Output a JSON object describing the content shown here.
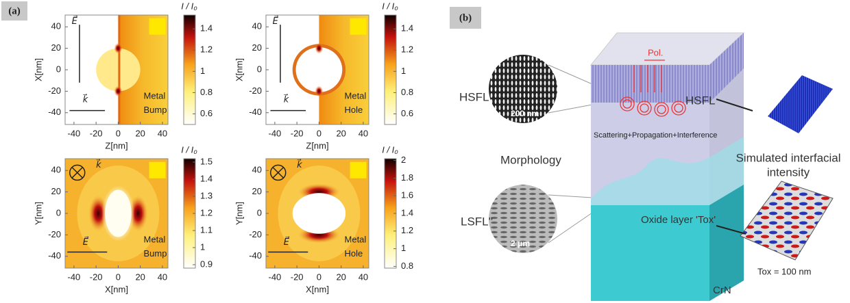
{
  "panel_a": {
    "label": "(a)",
    "plots": [
      {
        "xlabel": "Z[nm]",
        "ylabel": "X[nm]",
        "xlim": [
          -48,
          45
        ],
        "ylim": [
          -51,
          51
        ],
        "xticks": [
          -40,
          -20,
          0,
          20,
          40
        ],
        "yticks": [
          -40,
          -20,
          0,
          20,
          40
        ],
        "colorbar_title": "I / I₀",
        "clim": [
          0.5,
          1.53
        ],
        "cbar_ticks": [
          0.6,
          0.8,
          1,
          1.2,
          1.4
        ],
        "field_label": "E⃗",
        "wave_label": "k⃗",
        "material": "Metal",
        "structure": "Bump"
      },
      {
        "xlabel": "Z[nm]",
        "ylabel": "X[nm]",
        "xlim": [
          -48,
          45
        ],
        "ylim": [
          -51,
          51
        ],
        "xticks": [
          -40,
          -20,
          0,
          20,
          40
        ],
        "yticks": [
          -40,
          -20,
          0,
          20,
          40
        ],
        "colorbar_title": "I / I₀",
        "clim": [
          0.5,
          1.53
        ],
        "cbar_ticks": [
          0.6,
          0.8,
          1,
          1.2,
          1.4
        ],
        "field_label": "E⃗",
        "wave_label": "k⃗",
        "material": "Metal",
        "structure": "Hole"
      },
      {
        "xlabel": "X[nm]",
        "ylabel": "Y[nm]",
        "xlim": [
          -48,
          45
        ],
        "ylim": [
          -51,
          51
        ],
        "xticks": [
          -40,
          -20,
          0,
          20,
          40
        ],
        "yticks": [
          -40,
          -20,
          0,
          20,
          40
        ],
        "colorbar_title": "I / I₀",
        "clim": [
          0.88,
          1.52
        ],
        "cbar_ticks": [
          0.9,
          1,
          1.1,
          1.2,
          1.3,
          1.4,
          1.5
        ],
        "field_label": "E⃗",
        "wave_label": "k⃗",
        "material": "Metal",
        "structure": "Bump"
      },
      {
        "xlabel": "X[nm]",
        "ylabel": "Y[nm]",
        "xlim": [
          -48,
          45
        ],
        "ylim": [
          -51,
          51
        ],
        "xticks": [
          -40,
          -20,
          0,
          20,
          40
        ],
        "yticks": [
          -40,
          -20,
          0,
          20,
          40
        ],
        "colorbar_title": "I / I₀",
        "clim": [
          0.78,
          2.02
        ],
        "cbar_ticks": [
          0.8,
          1,
          1.2,
          1.4,
          1.6,
          1.8,
          2
        ],
        "field_label": "E⃗",
        "wave_label": "k⃗",
        "material": "Metal",
        "structure": "Hole"
      }
    ]
  },
  "panel_b": {
    "label": "(b)",
    "hsfl_left": "HSFL",
    "scale_hsfl": "200 nm",
    "morphology": "Morphology",
    "lsfl_left": "LSFL''",
    "scale_lsfl": "2 μm",
    "polarization": "Pol.",
    "hsfl_block": "HSFL",
    "process": "Scattering+Propagation+Interference",
    "oxide": "Oxide layer 'Tox'",
    "substrate": "CrN",
    "simulated": [
      "Simulated interfacial",
      "intensity"
    ],
    "thickness": "Tox = 100 nm"
  }
}
